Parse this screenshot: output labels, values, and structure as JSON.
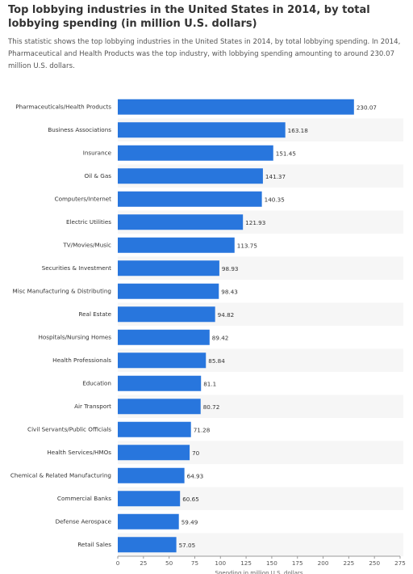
{
  "chart_data": {
    "type": "bar",
    "orientation": "horizontal",
    "title": "Top lobbying industries in the United States in 2014, by total lobbying spending (in million U.S. dollars)",
    "subtitle": "This statistic shows the top lobbying industries in the United States in 2014, by total lobbying spending. In 2014, Pharmaceutical and Health Products was the top industry, with lobbying spending amounting to around 230.07 million U.S. dollars.",
    "categories": [
      "Pharmaceuticals/Health Products",
      "Business Associations",
      "Insurance",
      "Oil & Gas",
      "Computers/Internet",
      "Electric Utilities",
      "TV/Movies/Music",
      "Securities & Investment",
      "Misc Manufacturing & Distributing",
      "Real Estate",
      "Hospitals/Nursing Homes",
      "Health Professionals",
      "Education",
      "Air Transport",
      "Civil Servants/Public Officials",
      "Health Services/HMOs",
      "Chemical & Related Manufacturing",
      "Commercial Banks",
      "Defense Aerospace",
      "Retail Sales"
    ],
    "values": [
      230.07,
      163.18,
      151.45,
      141.37,
      140.35,
      121.93,
      113.75,
      98.93,
      98.43,
      94.82,
      89.42,
      85.84,
      81.1,
      80.72,
      71.28,
      70,
      64.93,
      60.65,
      59.49,
      57.05
    ],
    "color": "#2876dd",
    "xlabel": "Spending in million U.S. dollars",
    "xlim": [
      0,
      275
    ],
    "xticks": [
      0,
      25,
      50,
      75,
      100,
      125,
      150,
      175,
      200,
      225,
      250,
      275
    ]
  }
}
